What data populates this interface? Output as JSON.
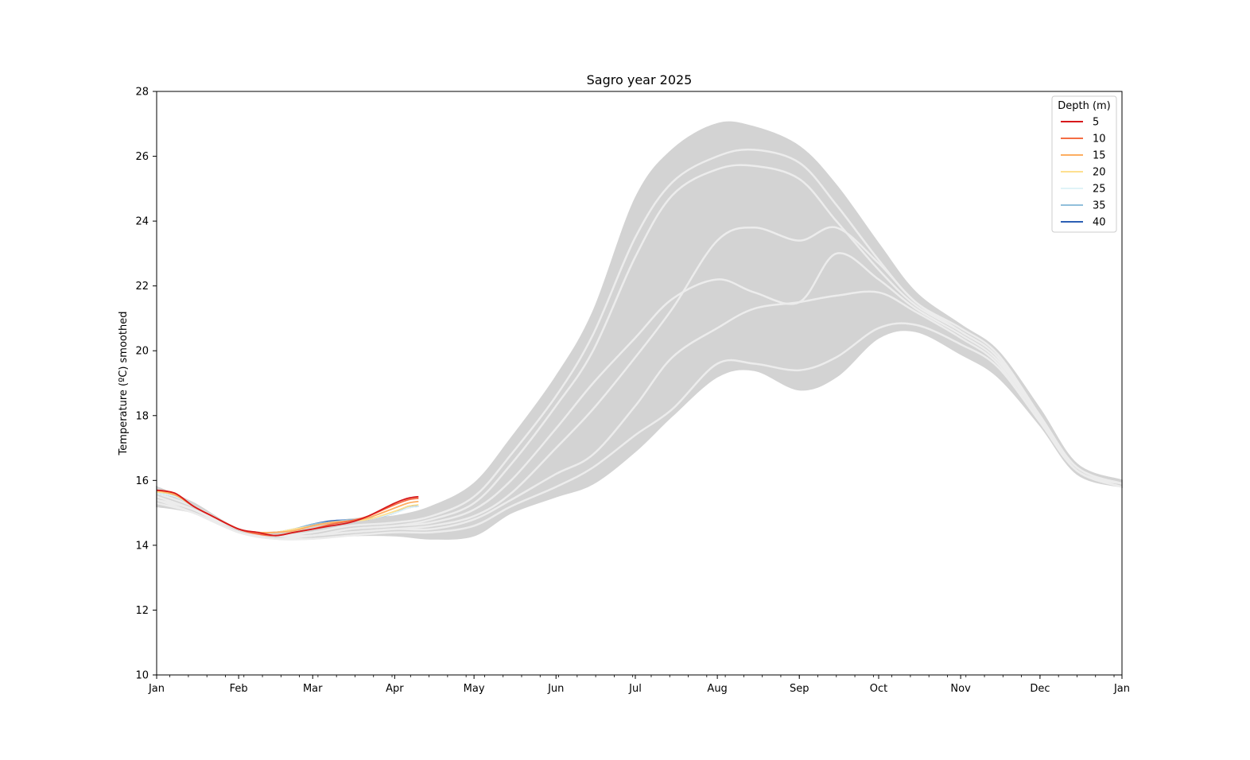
{
  "chart_data": {
    "type": "line",
    "title": "Sagro year 2025",
    "xlabel": "",
    "ylabel": "Temperature (ºC) smoothed",
    "ylim": [
      10,
      28
    ],
    "xlim": [
      "2025-01-01",
      "2026-01-01"
    ],
    "x_tick_labels": [
      "Jan",
      "Feb",
      "Mar",
      "Apr",
      "May",
      "Jun",
      "Jul",
      "Aug",
      "Sep",
      "Oct",
      "Nov",
      "Dec",
      "Jan"
    ],
    "y_ticks": [
      10,
      12,
      14,
      16,
      18,
      20,
      22,
      24,
      26,
      28
    ],
    "grid": false,
    "legend": {
      "title": "Depth (m)",
      "placement": "top-right"
    },
    "climatology_envelope": {
      "color": "#d3d3d3",
      "x": [
        "2025-01-01",
        "2025-01-15",
        "2025-02-01",
        "2025-02-15",
        "2025-03-01",
        "2025-03-15",
        "2025-04-01",
        "2025-04-15",
        "2025-05-01",
        "2025-05-15",
        "2025-06-01",
        "2025-06-15",
        "2025-07-01",
        "2025-07-15",
        "2025-08-01",
        "2025-08-15",
        "2025-09-01",
        "2025-09-15",
        "2025-10-01",
        "2025-10-15",
        "2025-11-01",
        "2025-11-15",
        "2025-12-01",
        "2025-12-15",
        "2026-01-01"
      ],
      "upper": [
        15.8,
        15.3,
        14.5,
        14.4,
        14.6,
        14.8,
        14.9,
        15.2,
        15.9,
        17.3,
        19.2,
        21.2,
        24.7,
        26.2,
        27.0,
        26.9,
        26.3,
        25.1,
        23.3,
        21.8,
        20.8,
        20.0,
        18.2,
        16.5,
        16.0
      ],
      "lower": [
        15.2,
        15.0,
        14.4,
        14.2,
        14.2,
        14.3,
        14.3,
        14.2,
        14.3,
        15.0,
        15.5,
        15.9,
        16.9,
        18.0,
        19.2,
        19.4,
        18.8,
        19.2,
        20.4,
        20.6,
        19.9,
        19.2,
        17.7,
        16.2,
        15.8
      ]
    },
    "climatology_lines": [
      {
        "name": "",
        "values": [
          15.6,
          15.2,
          14.5,
          14.3,
          14.4,
          14.6,
          14.7,
          14.9,
          15.5,
          16.8,
          18.6,
          20.5,
          23.5,
          25.2,
          26.0,
          26.2,
          25.8,
          24.5,
          22.8,
          21.5,
          20.7,
          19.9,
          18.0,
          16.4,
          15.9
        ]
      },
      {
        "name": "",
        "values": [
          15.5,
          15.1,
          14.5,
          14.3,
          14.3,
          14.5,
          14.6,
          14.8,
          15.3,
          16.5,
          18.3,
          20.0,
          22.9,
          24.8,
          25.6,
          25.7,
          25.3,
          24.0,
          22.5,
          21.4,
          20.6,
          19.8,
          17.9,
          16.4,
          15.9
        ]
      },
      {
        "name": "",
        "values": [
          15.5,
          15.1,
          14.5,
          14.3,
          14.3,
          14.5,
          14.6,
          14.7,
          15.1,
          16.0,
          17.6,
          19.0,
          20.4,
          21.6,
          22.2,
          21.8,
          21.5,
          23.0,
          22.2,
          21.3,
          20.5,
          19.7,
          17.9,
          16.3,
          15.9
        ]
      },
      {
        "name": "",
        "values": [
          15.4,
          15.1,
          14.4,
          14.3,
          14.3,
          14.4,
          14.5,
          14.6,
          14.9,
          15.6,
          17.0,
          18.2,
          19.8,
          21.3,
          23.4,
          23.8,
          23.4,
          23.8,
          22.7,
          21.5,
          20.6,
          19.8,
          17.9,
          16.3,
          15.9
        ]
      },
      {
        "name": "",
        "values": [
          15.4,
          15.0,
          14.4,
          14.2,
          14.3,
          14.4,
          14.5,
          14.5,
          14.8,
          15.4,
          16.2,
          16.8,
          18.3,
          19.8,
          20.7,
          21.3,
          21.5,
          21.7,
          21.8,
          21.2,
          20.4,
          19.6,
          17.8,
          16.3,
          15.9
        ]
      },
      {
        "name": "",
        "values": [
          15.3,
          15.0,
          14.4,
          14.2,
          14.2,
          14.3,
          14.4,
          14.4,
          14.6,
          15.2,
          15.8,
          16.4,
          17.4,
          18.2,
          19.6,
          19.6,
          19.4,
          19.8,
          20.7,
          20.8,
          20.2,
          19.5,
          17.8,
          16.3,
          15.8
        ]
      }
    ],
    "x": [
      "2025-01-01",
      "2025-01-08",
      "2025-01-15",
      "2025-01-22",
      "2025-02-01",
      "2025-02-08",
      "2025-02-15",
      "2025-02-22",
      "2025-03-01",
      "2025-03-08",
      "2025-03-15",
      "2025-03-22",
      "2025-04-01",
      "2025-04-06",
      "2025-04-10"
    ],
    "series": [
      {
        "name": "5",
        "color": "#d7191c",
        "values": [
          15.7,
          15.6,
          15.2,
          14.9,
          14.5,
          14.4,
          14.3,
          14.4,
          14.5,
          14.6,
          14.7,
          14.9,
          15.3,
          15.45,
          15.5
        ]
      },
      {
        "name": "10",
        "color": "#f46d43",
        "values": [
          15.7,
          15.6,
          15.2,
          14.9,
          14.5,
          14.35,
          14.3,
          14.4,
          14.5,
          14.65,
          14.75,
          14.9,
          15.25,
          15.4,
          15.45
        ]
      },
      {
        "name": "15",
        "color": "#fdae61",
        "values": [
          15.7,
          15.55,
          15.2,
          14.9,
          14.5,
          14.4,
          14.4,
          14.45,
          14.6,
          14.7,
          14.75,
          14.85,
          15.15,
          15.3,
          15.35
        ]
      },
      {
        "name": "20",
        "color": "#fee090",
        "values": [
          15.65,
          15.55,
          15.2,
          14.9,
          14.5,
          14.4,
          14.4,
          14.5,
          14.6,
          14.7,
          14.75,
          14.8,
          15.05,
          15.2,
          15.25
        ]
      },
      {
        "name": "25",
        "color": "#e0f3f8",
        "values": [
          15.6,
          15.5,
          15.2,
          14.9,
          14.5,
          14.4,
          14.4,
          14.5,
          14.6,
          14.7,
          14.75,
          14.8,
          15.0,
          15.15,
          15.2
        ]
      },
      {
        "name": "35",
        "color": "#91bfdb",
        "values": [
          15.6,
          15.5,
          15.2,
          14.9,
          14.5,
          14.4,
          14.4,
          14.5,
          14.65,
          14.72,
          14.78,
          14.8,
          15.0,
          15.15,
          15.2
        ]
      },
      {
        "name": "40",
        "color": "#2c5fb4",
        "values": [
          15.6,
          15.5,
          15.2,
          14.9,
          14.5,
          14.4,
          14.4,
          14.5,
          14.65,
          14.75,
          14.78,
          14.8,
          15.0,
          15.2,
          15.2
        ]
      }
    ]
  }
}
